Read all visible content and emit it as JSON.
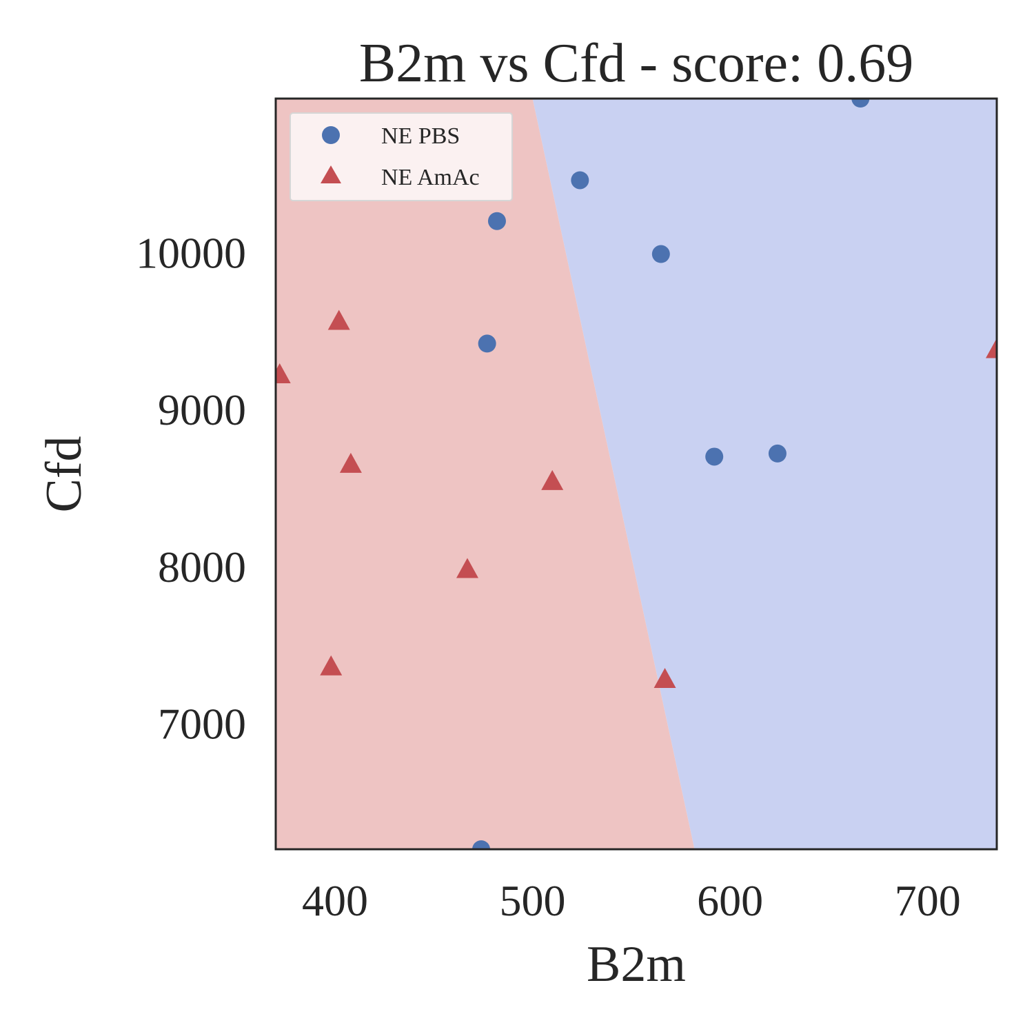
{
  "chart_data": {
    "type": "scatter",
    "title": "B2m vs Cfd - score: 0.69",
    "xlabel": "B2m",
    "ylabel": "Cfd",
    "xlim": [
      370,
      735
    ],
    "ylim": [
      6200,
      10980
    ],
    "x_ticks": [
      400,
      500,
      600,
      700
    ],
    "y_ticks": [
      7000,
      8000,
      9000,
      10000
    ],
    "grid": false,
    "legend_position": "top-left",
    "decision_boundary": {
      "line": [
        [
          500,
          10980
        ],
        [
          582,
          6200
        ]
      ],
      "left_region_class": "NE AmAc",
      "right_region_class": "NE PBS"
    },
    "colors": {
      "ne_pbs_marker": "#4c72b0",
      "ne_amac_marker": "#c44e52",
      "ne_pbs_region": "#c9d1f2",
      "ne_amac_region": "#eec4c3"
    },
    "series": [
      {
        "name": "NE PBS",
        "marker": "circle",
        "points": [
          [
            666,
            10980
          ],
          [
            524,
            10460
          ],
          [
            482,
            10200
          ],
          [
            565,
            9990
          ],
          [
            477,
            9420
          ],
          [
            592,
            8700
          ],
          [
            624,
            8720
          ],
          [
            474,
            6200
          ]
        ]
      },
      {
        "name": "NE AmAc",
        "marker": "triangle",
        "points": [
          [
            402,
            9560
          ],
          [
            372,
            9220
          ],
          [
            408,
            8650
          ],
          [
            510,
            8540
          ],
          [
            467,
            7980
          ],
          [
            398,
            7360
          ],
          [
            567,
            7280
          ],
          [
            735,
            9380
          ]
        ]
      }
    ]
  }
}
